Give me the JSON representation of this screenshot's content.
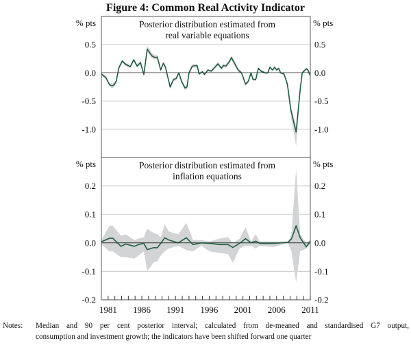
{
  "title": "Figure 4: Common Real Activity Indicator",
  "notes_label": "Notes:",
  "notes_line1": "Median and 90 per cent posterior interval; calculated from de-meaned and standardised G7 output,",
  "notes_line2": "consumption and investment growth; the indicators have been shifted forward one quarter",
  "colors": {
    "median": "#1f5c3f",
    "band": "#d3d4d6",
    "grid": "#cfcfcf",
    "axis": "#555555"
  },
  "chart_data": [
    {
      "type": "line",
      "title": "Posterior distribution estimated from real variable equations",
      "title_lines": [
        "Posterior distribution estimated from",
        "real variable equations"
      ],
      "ylabel_left": "% pts",
      "ylabel_right": "% pts",
      "ylim": [
        -1.5,
        1.0
      ],
      "yticks": [
        0.5,
        0.0,
        -0.5,
        -1.0
      ],
      "ytick_labels": [
        "0.5",
        "0.0",
        "-0.5",
        "-1.0"
      ],
      "xlim": [
        1980,
        2011
      ],
      "grid": true,
      "x": [
        1980.0,
        1980.7,
        1981.2,
        1981.6,
        1981.9,
        1982.2,
        1982.6,
        1983.1,
        1983.6,
        1984.3,
        1984.8,
        1985.3,
        1985.8,
        1986.0,
        1986.3,
        1986.8,
        1987.5,
        1988.0,
        1988.3,
        1988.8,
        1989.2,
        1989.5,
        1990.2,
        1990.7,
        1991.1,
        1991.5,
        1991.9,
        1992.4,
        1992.7,
        1993.0,
        1993.5,
        1994.2,
        1994.5,
        1995.0,
        1995.3,
        1995.8,
        1996.3,
        1997.0,
        1997.3,
        1997.8,
        1998.1,
        1998.5,
        1999.0,
        1999.3,
        2000.3,
        2000.8,
        2001.4,
        2001.8,
        2002.2,
        2002.5,
        2002.9,
        2003.3,
        2003.7,
        2004.3,
        2004.7,
        2005.0,
        2005.4,
        2005.7,
        2006.0,
        2006.3,
        2006.6,
        2007.1,
        2007.6,
        2008.1,
        2008.9,
        2009.5,
        2009.8,
        2010.4,
        2010.6,
        2011.0
      ],
      "median": [
        -0.02,
        -0.09,
        -0.21,
        -0.23,
        -0.21,
        -0.15,
        0.09,
        0.21,
        0.15,
        0.11,
        0.23,
        0.12,
        0.18,
        0.1,
        -0.03,
        0.42,
        0.3,
        0.27,
        0.28,
        0.05,
        0.17,
        0.1,
        -0.25,
        -0.12,
        -0.1,
        0.0,
        -0.15,
        -0.27,
        -0.25,
        0.0,
        0.12,
        0.13,
        -0.02,
        0.02,
        -0.03,
        0.05,
        0.03,
        0.12,
        0.16,
        0.08,
        0.13,
        0.12,
        0.2,
        0.27,
        0.05,
        0.0,
        -0.2,
        -0.15,
        0.0,
        -0.12,
        -0.12,
        0.08,
        0.03,
        0.0,
        0.0,
        0.1,
        0.05,
        0.1,
        0.05,
        0.08,
        0.0,
        -0.02,
        -0.2,
        -0.65,
        -1.05,
        -0.3,
        0.0,
        0.07,
        0.06,
        -0.05
      ],
      "upper": [
        0.0,
        -0.06,
        -0.18,
        -0.19,
        -0.17,
        -0.12,
        0.12,
        0.24,
        0.18,
        0.14,
        0.26,
        0.15,
        0.21,
        0.13,
        0.0,
        0.48,
        0.35,
        0.31,
        0.32,
        0.08,
        0.2,
        0.13,
        -0.21,
        -0.09,
        -0.07,
        0.03,
        -0.12,
        -0.23,
        -0.21,
        0.03,
        0.15,
        0.16,
        0.01,
        0.04,
        -0.01,
        0.07,
        0.05,
        0.15,
        0.19,
        0.11,
        0.16,
        0.15,
        0.23,
        0.31,
        0.08,
        0.02,
        -0.17,
        -0.12,
        0.02,
        -0.1,
        -0.1,
        0.1,
        0.05,
        0.02,
        0.02,
        0.12,
        0.07,
        0.12,
        0.07,
        0.1,
        0.02,
        0.0,
        -0.16,
        -0.58,
        -0.95,
        -0.25,
        0.02,
        0.09,
        0.08,
        -0.03
      ],
      "lower": [
        -0.04,
        -0.12,
        -0.24,
        -0.28,
        -0.25,
        -0.18,
        0.06,
        0.18,
        0.12,
        0.08,
        0.2,
        0.09,
        0.15,
        0.07,
        -0.06,
        0.37,
        0.26,
        0.23,
        0.24,
        0.02,
        0.14,
        0.07,
        -0.29,
        -0.15,
        -0.13,
        -0.03,
        -0.18,
        -0.31,
        -0.29,
        -0.03,
        0.09,
        0.1,
        -0.05,
        0.0,
        -0.05,
        0.03,
        0.01,
        0.09,
        0.13,
        0.05,
        0.1,
        0.09,
        0.17,
        0.23,
        0.02,
        -0.02,
        -0.24,
        -0.18,
        -0.02,
        -0.14,
        -0.14,
        0.06,
        0.01,
        -0.02,
        -0.02,
        0.08,
        0.03,
        0.08,
        0.03,
        0.06,
        -0.02,
        -0.04,
        -0.25,
        -0.75,
        -1.31,
        -0.36,
        -0.02,
        0.05,
        0.04,
        -0.07
      ]
    },
    {
      "type": "line",
      "title": "Posterior distribution estimated from inflation equations",
      "title_lines": [
        "Posterior distribution estimated from",
        "inflation equations"
      ],
      "ylabel_left": "% pts",
      "ylabel_right": "% pts",
      "ylim": [
        -0.2,
        0.3
      ],
      "yticks": [
        0.2,
        0.1,
        0.0,
        -0.1,
        -0.2
      ],
      "ytick_labels": [
        "0.2",
        "0.1",
        "0.0",
        "-0.1",
        "-0.2"
      ],
      "xlim": [
        1980,
        2011
      ],
      "xticks": [
        1981,
        1986,
        1991,
        1996,
        2001,
        2006,
        2011
      ],
      "xtick_labels": [
        "1981",
        "1986",
        "1991",
        "1996",
        "2001",
        "2006",
        "2011"
      ],
      "grid": true,
      "x": [
        1980.0,
        1981.2,
        1981.7,
        1982.9,
        1983.6,
        1984.9,
        1985.5,
        1986.3,
        1986.8,
        1987.7,
        1988.3,
        1988.8,
        1989.4,
        1990.0,
        1991.4,
        1992.6,
        1993.6,
        1994.8,
        1996.1,
        1997.5,
        1998.8,
        1999.5,
        2000.5,
        2001.4,
        2002.2,
        2002.9,
        2003.5,
        2005.6,
        2007.7,
        2008.2,
        2008.9,
        2009.5,
        2010.4,
        2011.0
      ],
      "median": [
        0.004,
        0.016,
        0.016,
        -0.012,
        -0.004,
        -0.012,
        -0.006,
        -0.002,
        -0.024,
        -0.017,
        -0.017,
        -0.002,
        0.018,
        0.01,
        0.0,
        0.018,
        -0.006,
        0.0,
        -0.002,
        -0.006,
        -0.006,
        -0.016,
        -0.002,
        0.015,
        0.0,
        0.006,
        -0.002,
        -0.002,
        0.002,
        0.014,
        0.06,
        0.018,
        -0.014,
        0.006
      ],
      "upper": [
        0.01,
        0.06,
        0.06,
        0.025,
        0.03,
        0.01,
        0.015,
        0.02,
        0.05,
        0.035,
        0.03,
        0.02,
        0.065,
        0.04,
        0.03,
        0.07,
        0.01,
        0.01,
        0.005,
        0.015,
        0.02,
        0.0,
        0.015,
        0.055,
        0.005,
        0.03,
        0.005,
        0.005,
        0.005,
        0.03,
        0.26,
        0.03,
        0.0,
        0.01
      ],
      "lower": [
        -0.005,
        -0.03,
        -0.03,
        -0.05,
        -0.05,
        -0.055,
        -0.045,
        -0.03,
        -0.1,
        -0.07,
        -0.065,
        -0.045,
        -0.03,
        -0.02,
        -0.01,
        -0.025,
        -0.03,
        -0.01,
        -0.03,
        -0.035,
        -0.04,
        -0.07,
        -0.02,
        -0.01,
        -0.01,
        -0.02,
        -0.01,
        -0.015,
        0.0,
        -0.03,
        -0.14,
        -0.03,
        -0.02,
        -0.005
      ]
    }
  ]
}
